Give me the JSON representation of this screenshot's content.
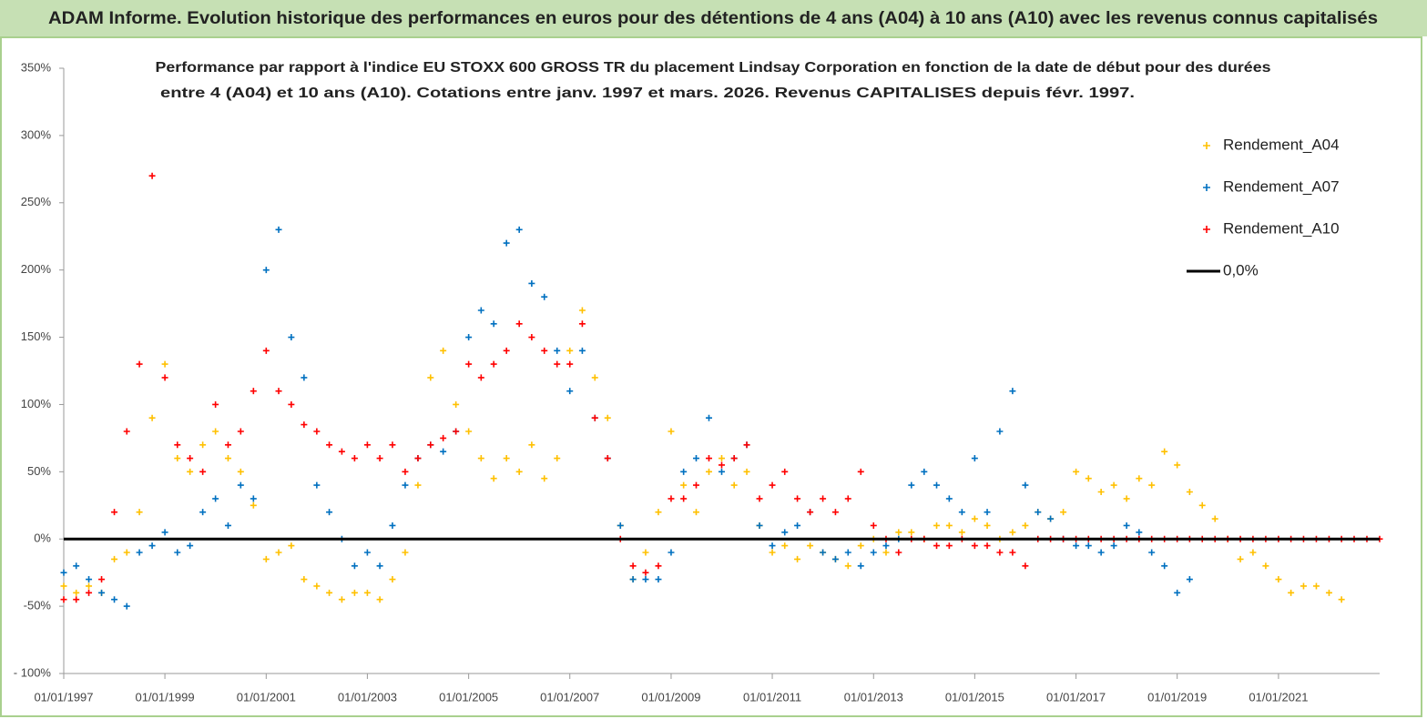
{
  "header": {
    "title": "ADAM Informe. Evolution historique des performances en euros pour des détentions de 4 ans (A04) à 10 ans (A10) avec les revenus connus capitalisés"
  },
  "chart_data": {
    "type": "scatter",
    "title": [
      "Performance par rapport à l'indice EU STOXX 600 GROSS TR  du placement Lindsay Corporation en fonction de la date de début pour des durées",
      "entre 4 (A04) et 10 ans (A10). Cotations entre janv. 1997 et mars. 2026. Revenus CAPITALISES depuis févr. 1997."
    ],
    "xlim": [
      "1997-01-01",
      "2023-01-01"
    ],
    "xticks": [
      {
        "value": "1997-01-01",
        "label": "01/01/1997"
      },
      {
        "value": "1999-01-01",
        "label": "01/01/1999"
      },
      {
        "value": "2001-01-01",
        "label": "01/01/2001"
      },
      {
        "value": "2003-01-01",
        "label": "01/01/2003"
      },
      {
        "value": "2005-01-01",
        "label": "01/01/2005"
      },
      {
        "value": "2007-01-01",
        "label": "01/01/2007"
      },
      {
        "value": "2009-01-01",
        "label": "01/01/2009"
      },
      {
        "value": "2011-01-01",
        "label": "01/01/2011"
      },
      {
        "value": "2013-01-01",
        "label": "01/01/2013"
      },
      {
        "value": "2015-01-01",
        "label": "01/01/2015"
      },
      {
        "value": "2017-01-01",
        "label": "01/01/2017"
      },
      {
        "value": "2019-01-01",
        "label": "01/01/2019"
      },
      {
        "value": "2021-01-01",
        "label": "01/01/2021"
      }
    ],
    "ylim": [
      -100,
      350
    ],
    "yticks": [
      {
        "value": -100,
        "label": "- 100%"
      },
      {
        "value": -50,
        "label": "-50%"
      },
      {
        "value": 0,
        "label": "0%"
      },
      {
        "value": 50,
        "label": "50%"
      },
      {
        "value": 100,
        "label": "100%"
      },
      {
        "value": 150,
        "label": "150%"
      },
      {
        "value": 200,
        "label": "200%"
      },
      {
        "value": 250,
        "label": "250%"
      },
      {
        "value": 300,
        "label": "300%"
      },
      {
        "value": 350,
        "label": "350%"
      }
    ],
    "reference_line": {
      "name": "0,0%",
      "value": 0,
      "color": "#000000"
    },
    "series": [
      {
        "name": "Rendement_A04",
        "color": "#ffc000",
        "x": [
          "1997-01-01",
          "1997-04-01",
          "1997-07-01",
          "1997-10-01",
          "1998-01-01",
          "1998-04-01",
          "1998-07-01",
          "1998-10-01",
          "1999-01-01",
          "1999-04-01",
          "1999-07-01",
          "1999-10-01",
          "2000-01-01",
          "2000-04-01",
          "2000-07-01",
          "2000-10-01",
          "2001-01-01",
          "2001-04-01",
          "2001-07-01",
          "2001-10-01",
          "2002-01-01",
          "2002-04-01",
          "2002-07-01",
          "2002-10-01",
          "2003-01-01",
          "2003-04-01",
          "2003-07-01",
          "2003-10-01",
          "2004-01-01",
          "2004-04-01",
          "2004-07-01",
          "2004-10-01",
          "2005-01-01",
          "2005-04-01",
          "2005-07-01",
          "2005-10-01",
          "2006-01-01",
          "2006-04-01",
          "2006-07-01",
          "2006-10-01",
          "2007-01-01",
          "2007-04-01",
          "2007-07-01",
          "2007-10-01",
          "2008-01-01",
          "2008-04-01",
          "2008-07-01",
          "2008-10-01",
          "2009-01-01",
          "2009-04-01",
          "2009-07-01",
          "2009-10-01",
          "2010-01-01",
          "2010-04-01",
          "2010-07-01",
          "2010-10-01",
          "2011-01-01",
          "2011-04-01",
          "2011-07-01",
          "2011-10-01",
          "2012-01-01",
          "2012-04-01",
          "2012-07-01",
          "2012-10-01",
          "2013-01-01",
          "2013-04-01",
          "2013-07-01",
          "2013-10-01",
          "2014-01-01",
          "2014-04-01",
          "2014-07-01",
          "2014-10-01",
          "2015-01-01",
          "2015-04-01",
          "2015-07-01",
          "2015-10-01",
          "2016-01-01",
          "2016-04-01",
          "2016-07-01",
          "2016-10-01",
          "2017-01-01",
          "2017-04-01",
          "2017-07-01",
          "2017-10-01",
          "2018-01-01",
          "2018-04-01",
          "2018-07-01",
          "2018-10-01",
          "2019-01-01",
          "2019-04-01",
          "2019-07-01",
          "2019-10-01",
          "2020-01-01",
          "2020-04-01",
          "2020-07-01",
          "2020-10-01",
          "2021-01-01",
          "2021-04-01",
          "2021-07-01",
          "2021-10-01",
          "2022-01-01",
          "2022-04-01"
        ],
        "values": [
          -35,
          -40,
          -35,
          -40,
          -15,
          -10,
          20,
          90,
          130,
          60,
          50,
          70,
          80,
          60,
          50,
          25,
          -15,
          -10,
          -5,
          -30,
          -35,
          -40,
          -45,
          -40,
          -40,
          -45,
          -30,
          -10,
          40,
          120,
          140,
          100,
          80,
          60,
          45,
          60,
          50,
          70,
          45,
          60,
          140,
          170,
          120,
          90,
          10,
          -30,
          -10,
          20,
          80,
          40,
          20,
          50,
          60,
          40,
          50,
          10,
          -10,
          -5,
          -15,
          -5,
          -10,
          -15,
          -20,
          -5,
          0,
          -10,
          5,
          5,
          0,
          10,
          10,
          5,
          15,
          10,
          0,
          5,
          10,
          20,
          15,
          20,
          50,
          45,
          35,
          40,
          30,
          45,
          40,
          65,
          55,
          35,
          25,
          15,
          0,
          -15,
          -10,
          -20,
          -30,
          -40,
          -35,
          -35,
          -40,
          -45
        ]
      },
      {
        "name": "Rendement_A07",
        "color": "#0070c0",
        "x": [
          "1997-01-01",
          "1997-04-01",
          "1997-07-01",
          "1997-10-01",
          "1998-01-01",
          "1998-04-01",
          "1998-07-01",
          "1998-10-01",
          "1999-01-01",
          "1999-04-01",
          "1999-07-01",
          "1999-10-01",
          "2000-01-01",
          "2000-04-01",
          "2000-07-01",
          "2000-10-01",
          "2001-01-01",
          "2001-04-01",
          "2001-07-01",
          "2001-10-01",
          "2002-01-01",
          "2002-04-01",
          "2002-07-01",
          "2002-10-01",
          "2003-01-01",
          "2003-04-01",
          "2003-07-01",
          "2003-10-01",
          "2004-01-01",
          "2004-04-01",
          "2004-07-01",
          "2004-10-01",
          "2005-01-01",
          "2005-04-01",
          "2005-07-01",
          "2005-10-01",
          "2006-01-01",
          "2006-04-01",
          "2006-07-01",
          "2006-10-01",
          "2007-01-01",
          "2007-04-01",
          "2007-07-01",
          "2007-10-01",
          "2008-01-01",
          "2008-04-01",
          "2008-07-01",
          "2008-10-01",
          "2009-01-01",
          "2009-04-01",
          "2009-07-01",
          "2009-10-01",
          "2010-01-01",
          "2010-04-01",
          "2010-07-01",
          "2010-10-01",
          "2011-01-01",
          "2011-04-01",
          "2011-07-01",
          "2011-10-01",
          "2012-01-01",
          "2012-04-01",
          "2012-07-01",
          "2012-10-01",
          "2013-01-01",
          "2013-04-01",
          "2013-07-01",
          "2013-10-01",
          "2014-01-01",
          "2014-04-01",
          "2014-07-01",
          "2014-10-01",
          "2015-01-01",
          "2015-04-01",
          "2015-07-01",
          "2015-10-01",
          "2016-01-01",
          "2016-04-01",
          "2016-07-01",
          "2016-10-01",
          "2017-01-01",
          "2017-04-01",
          "2017-07-01",
          "2017-10-01",
          "2018-01-01",
          "2018-04-01",
          "2018-07-01",
          "2018-10-01",
          "2019-01-01",
          "2019-04-01"
        ],
        "values": [
          -25,
          -20,
          -30,
          -40,
          -45,
          -50,
          -10,
          -5,
          5,
          -10,
          -5,
          20,
          30,
          10,
          40,
          30,
          200,
          230,
          150,
          120,
          40,
          20,
          0,
          -20,
          -10,
          -20,
          10,
          40,
          60,
          70,
          65,
          80,
          150,
          170,
          160,
          220,
          230,
          190,
          180,
          140,
          110,
          140,
          90,
          60,
          10,
          -30,
          -30,
          -30,
          -10,
          50,
          60,
          90,
          50,
          60,
          70,
          10,
          -5,
          5,
          10,
          20,
          -10,
          -15,
          -10,
          -20,
          -10,
          -5,
          0,
          40,
          50,
          40,
          30,
          20,
          60,
          20,
          80,
          110,
          40,
          20,
          15,
          0,
          -5,
          -5,
          -10,
          -5,
          10,
          5,
          -10,
          -20,
          -40,
          -30
        ]
      },
      {
        "name": "Rendement_A10",
        "color": "#ff0000",
        "x": [
          "1997-01-01",
          "1997-04-01",
          "1997-07-01",
          "1997-10-01",
          "1998-01-01",
          "1998-04-01",
          "1998-07-01",
          "1998-10-01",
          "1999-01-01",
          "1999-04-01",
          "1999-07-01",
          "1999-10-01",
          "2000-01-01",
          "2000-04-01",
          "2000-07-01",
          "2000-10-01",
          "2001-01-01",
          "2001-04-01",
          "2001-07-01",
          "2001-10-01",
          "2002-01-01",
          "2002-04-01",
          "2002-07-01",
          "2002-10-01",
          "2003-01-01",
          "2003-04-01",
          "2003-07-01",
          "2003-10-01",
          "2004-01-01",
          "2004-04-01",
          "2004-07-01",
          "2004-10-01",
          "2005-01-01",
          "2005-04-01",
          "2005-07-01",
          "2005-10-01",
          "2006-01-01",
          "2006-04-01",
          "2006-07-01",
          "2006-10-01",
          "2007-01-01",
          "2007-04-01",
          "2007-07-01",
          "2007-10-01",
          "2008-01-01",
          "2008-04-01",
          "2008-07-01",
          "2008-10-01",
          "2009-01-01",
          "2009-04-01",
          "2009-07-01",
          "2009-10-01",
          "2010-01-01",
          "2010-04-01",
          "2010-07-01",
          "2010-10-01",
          "2011-01-01",
          "2011-04-01",
          "2011-07-01",
          "2011-10-01",
          "2012-01-01",
          "2012-04-01",
          "2012-07-01",
          "2012-10-01",
          "2013-01-01",
          "2013-04-01",
          "2013-07-01",
          "2013-10-01",
          "2014-01-01",
          "2014-04-01",
          "2014-07-01",
          "2014-10-01",
          "2015-01-01",
          "2015-04-01",
          "2015-07-01",
          "2015-10-01",
          "2016-01-01",
          "2016-04-01",
          "2016-07-01",
          "2016-10-01",
          "2017-01-01",
          "2017-04-01",
          "2017-07-01",
          "2017-10-01",
          "2018-01-01",
          "2018-04-01",
          "2018-07-01",
          "2018-10-01",
          "2019-01-01",
          "2019-04-01",
          "2019-07-01",
          "2019-10-01",
          "2020-01-01",
          "2020-04-01",
          "2020-07-01",
          "2020-10-01",
          "2021-01-01",
          "2021-04-01",
          "2021-07-01",
          "2021-10-01",
          "2022-01-01",
          "2022-04-01",
          "2022-07-01",
          "2022-10-01",
          "2023-01-01"
        ],
        "values": [
          -45,
          -45,
          -40,
          -30,
          20,
          80,
          130,
          270,
          120,
          70,
          60,
          50,
          100,
          70,
          80,
          110,
          140,
          110,
          100,
          85,
          80,
          70,
          65,
          60,
          70,
          60,
          70,
          50,
          60,
          70,
          75,
          80,
          130,
          120,
          130,
          140,
          160,
          150,
          140,
          130,
          130,
          160,
          90,
          60,
          0,
          -20,
          -25,
          -20,
          30,
          30,
          40,
          60,
          55,
          60,
          70,
          30,
          40,
          50,
          30,
          20,
          30,
          20,
          30,
          50,
          10,
          0,
          -10,
          0,
          0,
          -5,
          -5,
          0,
          -5,
          -5,
          -10,
          -10,
          -20,
          0,
          0,
          0,
          0,
          0,
          0,
          0,
          0,
          0,
          0,
          0,
          0,
          0,
          0,
          0,
          0,
          0,
          0,
          0,
          0,
          0,
          0,
          0,
          0,
          0,
          0,
          0,
          0
        ]
      }
    ]
  }
}
